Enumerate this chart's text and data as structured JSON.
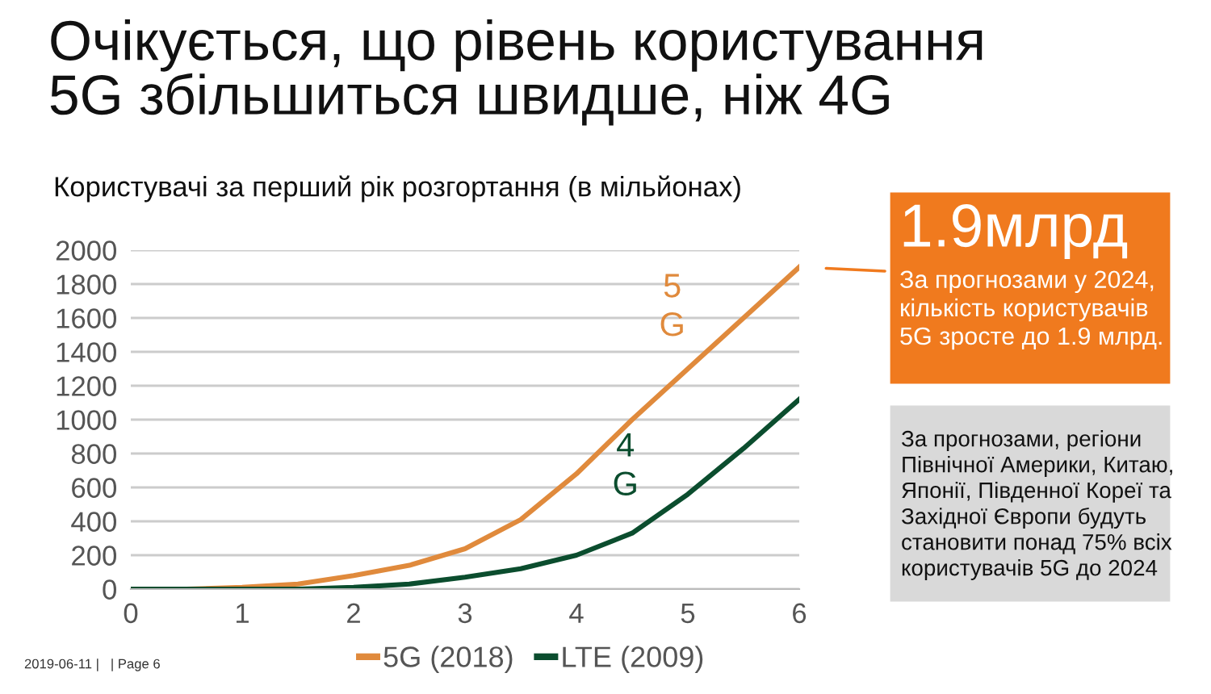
{
  "chart_data": {
    "type": "line",
    "title": "Очікується, що рівень користування\n5G збільшиться швидше, ніж 4G",
    "subtitle": "Користувачі за перший рік розгортання (в мільйонах)",
    "x": [
      0,
      0.5,
      1,
      1.5,
      2,
      2.5,
      3,
      3.5,
      4,
      4.5,
      5,
      5.5,
      6
    ],
    "series": [
      {
        "name": "5G (2018)",
        "color": "#e08a3c",
        "values": [
          0,
          0,
          10,
          30,
          80,
          140,
          238,
          410,
          680,
          1000,
          1300,
          1600,
          1900
        ]
      },
      {
        "name": "LTE (2009)",
        "color": "#0b4d2e",
        "values": [
          0,
          0,
          0,
          0,
          10,
          30,
          70,
          120,
          200,
          330,
          560,
          830,
          1120
        ]
      }
    ],
    "annotations": [
      {
        "text": "1.9млрд",
        "x": 6,
        "y": 1900
      },
      "За прогнозами у 2024,\nкількість користувачів\n5G зросте до 1.9 млрд.",
      "За прогнозами, регіони\nПівнічної Америки, Китаю,\nЯпонії, Південної Кореї та\nЗахідної Європи будуть\nстановити понад 75% всіх\nкористувачів 5G до 2024",
      "2019-06-11 |   | Page 6",
      "5\nG",
      "4\nG"
    ],
    "xlim": [
      0,
      6
    ],
    "xticks": [
      0,
      1,
      2,
      3,
      4,
      5,
      6
    ],
    "ylim": [
      0,
      2000
    ],
    "yticks": [
      0,
      200,
      400,
      600,
      800,
      1000,
      1200,
      1400,
      1600,
      1800,
      2000
    ],
    "grid": "y",
    "legend": "bottom",
    "marker": "none",
    "line_style": "solid"
  }
}
